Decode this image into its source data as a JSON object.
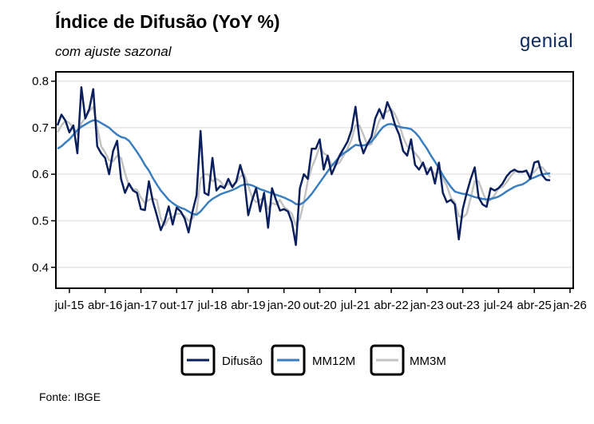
{
  "title": "Índice de Difusão (YoY %)",
  "subtitle": "com ajuste sazonal",
  "logo_text": "genial",
  "source": "Fonte: IBGE",
  "colors": {
    "difusao": "#0b1f5c",
    "mm12m": "#3a7ec0",
    "mm3m": "#c3c3c3",
    "grid": "#e6e6e6"
  },
  "chart_data": {
    "type": "line",
    "x_unit": "month",
    "x_ticks": [
      "jul-15",
      "abr-16",
      "jan-17",
      "out-17",
      "jul-18",
      "abr-19",
      "jan-20",
      "out-20",
      "jul-21",
      "abr-22",
      "jan-23",
      "out-23",
      "jul-24",
      "abr-25",
      "jan-26"
    ],
    "y_ticks": [
      "0.4",
      "0.5",
      "0.6",
      "0.7",
      "0.8"
    ],
    "xlim": [
      "2015-04",
      "2026-01"
    ],
    "ylim": [
      0.355,
      0.82
    ],
    "grid": "horizontal",
    "legend_position": "bottom",
    "series": [
      {
        "name": "Difusão",
        "start": "2015-04",
        "values": [
          0.705,
          0.728,
          0.715,
          0.69,
          0.705,
          0.645,
          0.787,
          0.72,
          0.74,
          0.783,
          0.66,
          0.645,
          0.635,
          0.6,
          0.65,
          0.672,
          0.59,
          0.56,
          0.58,
          0.565,
          0.56,
          0.525,
          0.523,
          0.585,
          0.542,
          0.512,
          0.48,
          0.5,
          0.531,
          0.492,
          0.528,
          0.52,
          0.505,
          0.475,
          0.52,
          0.555,
          0.693,
          0.56,
          0.555,
          0.635,
          0.565,
          0.575,
          0.57,
          0.59,
          0.572,
          0.585,
          0.62,
          0.59,
          0.512,
          0.545,
          0.57,
          0.52,
          0.56,
          0.485,
          0.57,
          0.545,
          0.522,
          0.525,
          0.52,
          0.497,
          0.448,
          0.57,
          0.6,
          0.59,
          0.655,
          0.655,
          0.675,
          0.61,
          0.64,
          0.6,
          0.62,
          0.64,
          0.655,
          0.67,
          0.695,
          0.745,
          0.675,
          0.645,
          0.665,
          0.68,
          0.72,
          0.74,
          0.72,
          0.755,
          0.735,
          0.705,
          0.685,
          0.65,
          0.64,
          0.675,
          0.62,
          0.61,
          0.625,
          0.6,
          0.615,
          0.58,
          0.625,
          0.56,
          0.54,
          0.545,
          0.535,
          0.46,
          0.525,
          0.56,
          0.59,
          0.615,
          0.55,
          0.535,
          0.53,
          0.57,
          0.565,
          0.57,
          0.58,
          0.595,
          0.605,
          0.61,
          0.605,
          0.605,
          0.608,
          0.59,
          0.625,
          0.628,
          0.598,
          0.588,
          0.587
        ]
      },
      {
        "name": "MM12M",
        "start": "2015-04",
        "values": [
          0.655,
          0.66,
          0.668,
          0.675,
          0.685,
          0.695,
          0.702,
          0.707,
          0.712,
          0.716,
          0.715,
          0.71,
          0.705,
          0.7,
          0.692,
          0.685,
          0.68,
          0.678,
          0.672,
          0.66,
          0.648,
          0.635,
          0.62,
          0.608,
          0.592,
          0.578,
          0.565,
          0.555,
          0.545,
          0.538,
          0.532,
          0.528,
          0.525,
          0.52,
          0.515,
          0.513,
          0.52,
          0.53,
          0.54,
          0.547,
          0.552,
          0.557,
          0.56,
          0.563,
          0.566,
          0.57,
          0.575,
          0.578,
          0.578,
          0.576,
          0.572,
          0.568,
          0.565,
          0.562,
          0.559,
          0.556,
          0.553,
          0.55,
          0.546,
          0.542,
          0.536,
          0.535,
          0.54,
          0.548,
          0.558,
          0.57,
          0.582,
          0.594,
          0.606,
          0.618,
          0.628,
          0.638,
          0.645,
          0.65,
          0.657,
          0.663,
          0.662,
          0.662,
          0.664,
          0.67,
          0.68,
          0.692,
          0.702,
          0.707,
          0.708,
          0.705,
          0.702,
          0.7,
          0.699,
          0.697,
          0.69,
          0.68,
          0.667,
          0.655,
          0.64,
          0.627,
          0.613,
          0.598,
          0.585,
          0.573,
          0.563,
          0.56,
          0.558,
          0.557,
          0.554,
          0.551,
          0.549,
          0.547,
          0.546,
          0.547,
          0.549,
          0.552,
          0.557,
          0.563,
          0.568,
          0.573,
          0.576,
          0.578,
          0.583,
          0.59,
          0.593,
          0.597,
          0.6,
          0.601,
          0.602
        ]
      },
      {
        "name": "MM3M",
        "start": "2015-04",
        "values": [
          0.69,
          0.705,
          0.715,
          0.71,
          0.7,
          0.685,
          0.71,
          0.72,
          0.735,
          0.745,
          0.7,
          0.66,
          0.647,
          0.63,
          0.628,
          0.64,
          0.635,
          0.602,
          0.575,
          0.568,
          0.567,
          0.55,
          0.538,
          0.545,
          0.548,
          0.545,
          0.505,
          0.49,
          0.505,
          0.508,
          0.515,
          0.515,
          0.51,
          0.5,
          0.505,
          0.52,
          0.59,
          0.6,
          0.6,
          0.585,
          0.59,
          0.585,
          0.572,
          0.58,
          0.575,
          0.582,
          0.595,
          0.6,
          0.575,
          0.55,
          0.54,
          0.545,
          0.55,
          0.525,
          0.538,
          0.535,
          0.545,
          0.53,
          0.523,
          0.515,
          0.49,
          0.505,
          0.54,
          0.585,
          0.615,
          0.635,
          0.66,
          0.645,
          0.64,
          0.62,
          0.62,
          0.625,
          0.64,
          0.655,
          0.675,
          0.705,
          0.705,
          0.685,
          0.662,
          0.665,
          0.69,
          0.715,
          0.73,
          0.735,
          0.74,
          0.728,
          0.708,
          0.68,
          0.66,
          0.655,
          0.645,
          0.635,
          0.618,
          0.612,
          0.61,
          0.6,
          0.605,
          0.59,
          0.575,
          0.55,
          0.54,
          0.51,
          0.507,
          0.515,
          0.55,
          0.585,
          0.585,
          0.562,
          0.54,
          0.545,
          0.555,
          0.57,
          0.573,
          0.582,
          0.595,
          0.605,
          0.607,
          0.606,
          0.605,
          0.6,
          0.605,
          0.615,
          0.615,
          0.605,
          0.593
        ]
      }
    ]
  }
}
